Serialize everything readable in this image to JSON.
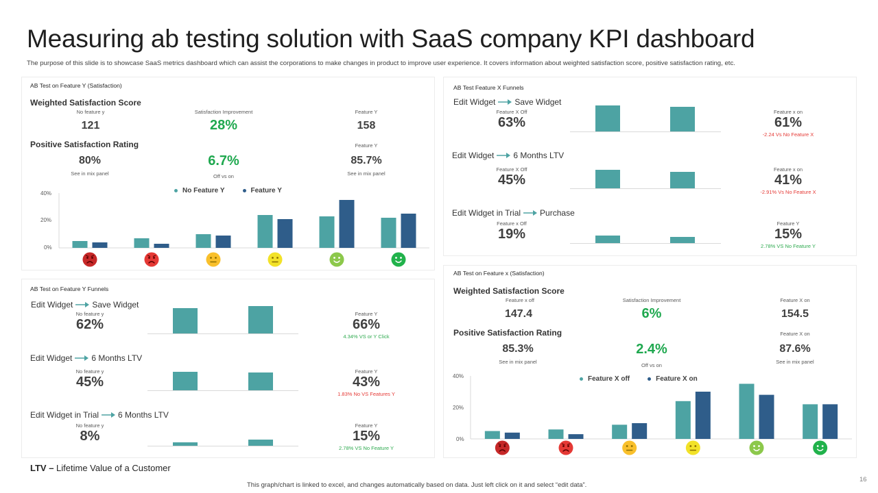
{
  "title": "Measuring ab testing solution with SaaS company KPI dashboard",
  "subtitle": "The purpose of this slide is to showcase SaaS metrics dashboard which can assist the corporations to make changes in product to improve user experience. It covers information about weighted satisfaction score, positive satisfaction rating, etc.",
  "colors": {
    "teal": "#4da3a3",
    "navy": "#2f5d8a",
    "green": "#1fa84f",
    "red": "#e53935"
  },
  "panel_y_sat": {
    "title": "AB Test on Feature Y (Satisfaction)",
    "wss_label": "Weighted Satisfaction Score",
    "wss": [
      {
        "caption": "No feature  y",
        "value": "121"
      },
      {
        "caption": "Satisfaction  Improvement",
        "value": "28%"
      },
      {
        "caption": "Feature Y",
        "value": "158"
      }
    ],
    "psr_label": "Positive Satisfaction Rating",
    "psr": [
      {
        "value": "80%",
        "note": "See in mix panel"
      },
      {
        "value": "6.7%",
        "note": "Off vs on"
      },
      {
        "caption": "Feature Y",
        "value": "85.7%",
        "note": "See in mix panel"
      }
    ]
  },
  "panel_x_funnels": {
    "title": "AB Test Feature X Funnels",
    "rows": [
      {
        "from": "Edit Widget",
        "to": "Save Widget",
        "left_caption": "Feature X Off",
        "left_value": "63%",
        "right_caption": "Feature x on",
        "right_value": "61%",
        "delta": "-2.24 Vs No Feature  X",
        "delta_type": "red",
        "bars": [
          0.38,
          0.36
        ]
      },
      {
        "from": "Edit Widget",
        "to": "6 Months LTV",
        "left_caption": "Feature X Off",
        "left_value": "45%",
        "right_caption": "Feature x on",
        "right_value": "41%",
        "delta": "-2.91%  Vs No Feature  X",
        "delta_type": "red",
        "bars": [
          0.27,
          0.24
        ]
      },
      {
        "from": "Edit Widget in Trial",
        "to": "Purchase",
        "left_caption": "Feature x Off",
        "left_value": "19%",
        "right_caption": "Feature Y",
        "right_value": "15%",
        "delta": "2.78%  VS No Feature  Y",
        "delta_type": "green",
        "bars": [
          0.11,
          0.09
        ]
      }
    ]
  },
  "panel_y_funnels": {
    "title": "AB Test on Feature Y Funnels",
    "rows": [
      {
        "from": "Edit Widget",
        "to": "Save Widget",
        "left_caption": "No feature  y",
        "left_value": "62%",
        "right_caption": "Feature Y",
        "right_value": "66%",
        "delta": "4.34%  VS  or Y Click",
        "delta_type": "green",
        "bars": [
          0.37,
          0.4
        ]
      },
      {
        "from": "Edit Widget",
        "to": "6 Months LTV",
        "left_caption": "No feature  y",
        "left_value": "45%",
        "right_caption": "Feature Y",
        "right_value": "43%",
        "delta": "1.83%  No VS Features  Y",
        "delta_type": "red",
        "bars": [
          0.27,
          0.26
        ]
      },
      {
        "from": "Edit Widget in Trial",
        "to": "6 Months LTV",
        "left_caption": "No feature  y",
        "left_value": "8%",
        "right_caption": "Feature Y",
        "right_value": "15%",
        "delta": "2.78%  VS No Feature  Y",
        "delta_type": "green",
        "bars": [
          0.05,
          0.09
        ]
      }
    ]
  },
  "panel_x_sat": {
    "title": "AB Test on Feature x (Satisfaction)",
    "wss_label": "Weighted Satisfaction Score",
    "wss": [
      {
        "caption": "Feature  x off",
        "value": "147.4"
      },
      {
        "caption": "Satisfaction  Improvement",
        "value": "6%"
      },
      {
        "caption": "Feature  X on",
        "value": "154.5"
      }
    ],
    "psr_label": "Positive Satisfaction Rating",
    "psr": [
      {
        "value": "85.3%",
        "note": "See in mix panel"
      },
      {
        "value": "2.4%",
        "note": "Off vs on"
      },
      {
        "caption": "Feature  X on",
        "value": "87.6%",
        "note": "See in mix panel"
      }
    ]
  },
  "chart_data": [
    {
      "type": "bar",
      "title": "",
      "categories": [
        "very dissatisfied",
        "dissatisfied",
        "neutral",
        "slightly satisfied",
        "satisfied",
        "very satisfied"
      ],
      "series": [
        {
          "name": "No Feature Y",
          "color": "#4da3a3",
          "values": [
            5,
            7,
            10,
            24,
            23,
            22
          ]
        },
        {
          "name": "Feature Y",
          "color": "#2f5d8a",
          "values": [
            4,
            3,
            9,
            21,
            35,
            25
          ]
        }
      ],
      "ylim": [
        0,
        40
      ],
      "yticks": [
        "0%",
        "20%",
        "40%"
      ],
      "legend": "top"
    },
    {
      "type": "bar",
      "title": "",
      "categories": [
        "very dissatisfied",
        "dissatisfied",
        "neutral",
        "slightly satisfied",
        "satisfied",
        "very satisfied"
      ],
      "series": [
        {
          "name": "Feature X off",
          "color": "#4da3a3",
          "values": [
            5,
            6,
            9,
            24,
            35,
            22
          ]
        },
        {
          "name": "Feature X on",
          "color": "#2f5d8a",
          "values": [
            4,
            3,
            10,
            30,
            28,
            22
          ]
        }
      ],
      "ylim": [
        0,
        40
      ],
      "yticks": [
        "0%",
        "20%",
        "40%"
      ],
      "legend": "top"
    }
  ],
  "footer": {
    "ltv_abbr": "LTV –",
    "ltv_text": " Lifetime Value of a Customer",
    "note": "This graph/chart is linked to excel, and changes automatically based on data. Just left click on it and select “edit data”.",
    "page": "16"
  }
}
